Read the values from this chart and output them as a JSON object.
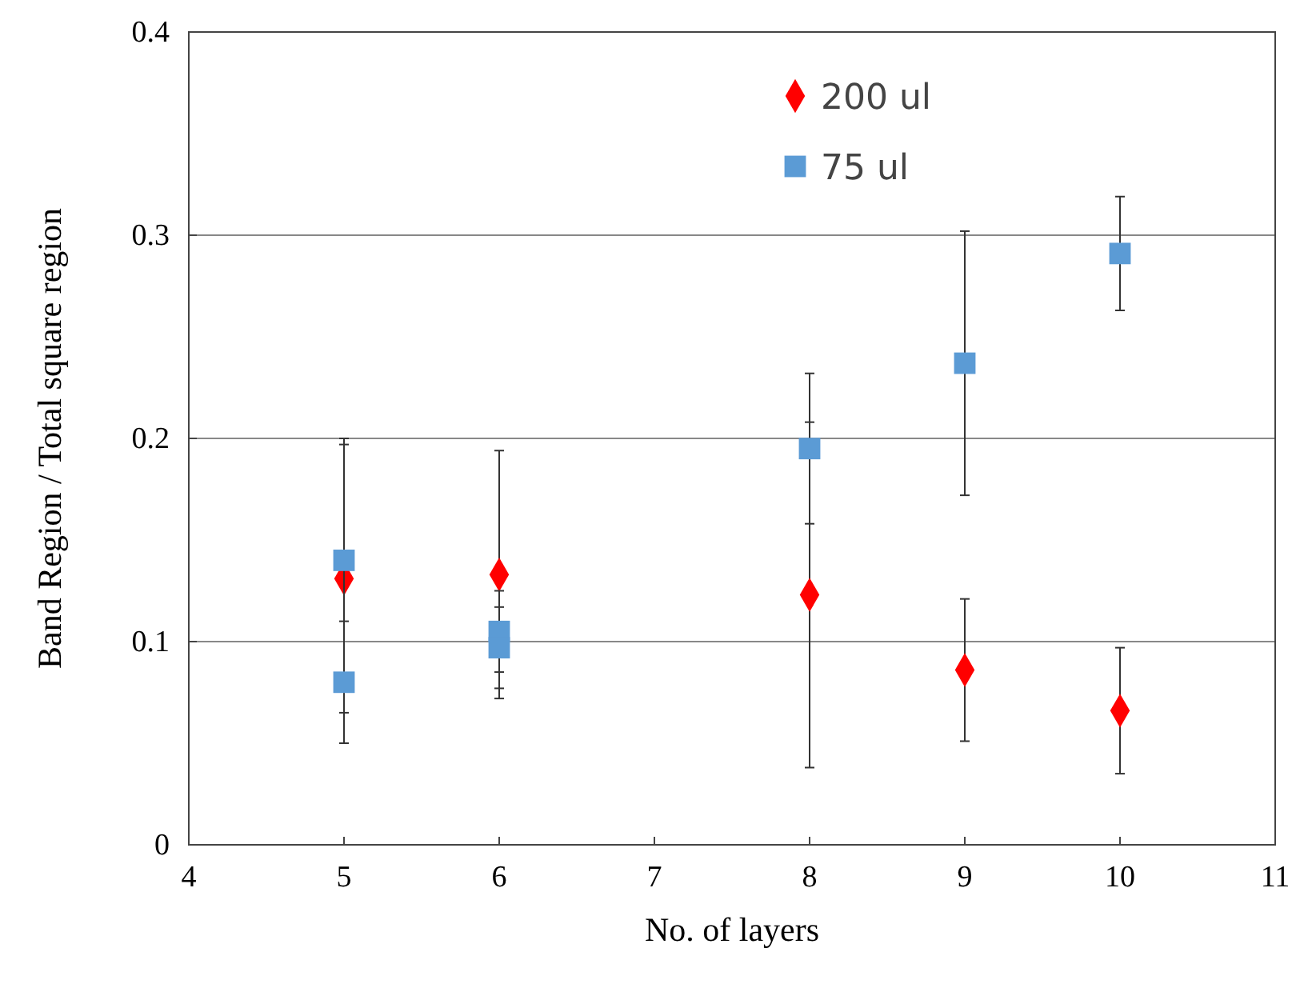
{
  "chart_data": {
    "type": "scatter",
    "xlabel": "No. of layers",
    "ylabel": "Band Region / Total square region",
    "xlim": [
      4,
      11
    ],
    "xticks": [
      4,
      5,
      6,
      7,
      8,
      9,
      10,
      11
    ],
    "ylim": [
      0,
      0.4
    ],
    "yticks": [
      0,
      0.1,
      0.2,
      0.3,
      0.4
    ],
    "grid": "y",
    "legend": "top right",
    "series": [
      {
        "name": "200 ul",
        "color": "#ff0000",
        "marker": "diamond",
        "x": [
          5,
          6,
          8,
          9,
          10
        ],
        "values": [
          0.131,
          0.133,
          0.123,
          0.086,
          0.066
        ],
        "errors": [
          0.066,
          0.061,
          0.085,
          0.035,
          0.031
        ]
      },
      {
        "name": "75 ul",
        "color": "#5b9bd5",
        "marker": "square",
        "x": [
          5,
          5,
          6,
          6,
          8,
          9,
          10
        ],
        "values": [
          0.14,
          0.08,
          0.105,
          0.097,
          0.195,
          0.237,
          0.291
        ],
        "errors": [
          0.06,
          0.03,
          0.02,
          0.02,
          0.037,
          0.065,
          0.028
        ]
      }
    ]
  }
}
